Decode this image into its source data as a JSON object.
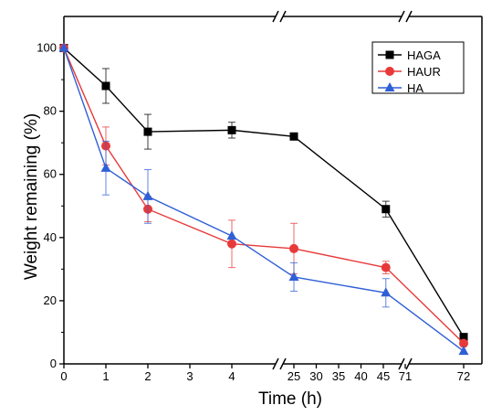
{
  "chart_data": {
    "type": "line",
    "title": "",
    "xlabel": "Time (h)",
    "ylabel": "Weight remaining (%)",
    "ylim": [
      0,
      110
    ],
    "x_axis_breaks": [
      "4-25",
      "45-71"
    ],
    "x_tick_labels": [
      "0",
      "1",
      "2",
      "3",
      "4",
      "25",
      "30",
      "35",
      "40",
      "45",
      "71",
      "72"
    ],
    "y_tick_labels": [
      "0",
      "20",
      "40",
      "60",
      "80",
      "100"
    ],
    "x": [
      0,
      1,
      2,
      4,
      25,
      48,
      72
    ],
    "legend_position": "top-right",
    "grid": false,
    "series": [
      {
        "name": "HAGA",
        "color": "#000000",
        "marker": "square",
        "values": [
          100,
          88,
          73.5,
          74,
          72,
          49,
          8.5
        ],
        "errors": [
          0,
          5.5,
          5.5,
          2.5,
          0,
          2.5,
          0
        ]
      },
      {
        "name": "HAUR",
        "color": "#e8393a",
        "marker": "circle",
        "values": [
          100,
          69,
          49,
          38,
          36.5,
          30.5,
          6.5
        ],
        "errors": [
          0,
          6,
          4,
          7.5,
          8,
          2,
          0
        ]
      },
      {
        "name": "HA",
        "color": "#2f5fd6",
        "marker": "triangle",
        "values": [
          100,
          62,
          53,
          40.5,
          27.5,
          22.5,
          4
        ],
        "errors": [
          0,
          8.5,
          8.5,
          0,
          4.5,
          4.5,
          0
        ]
      }
    ]
  }
}
